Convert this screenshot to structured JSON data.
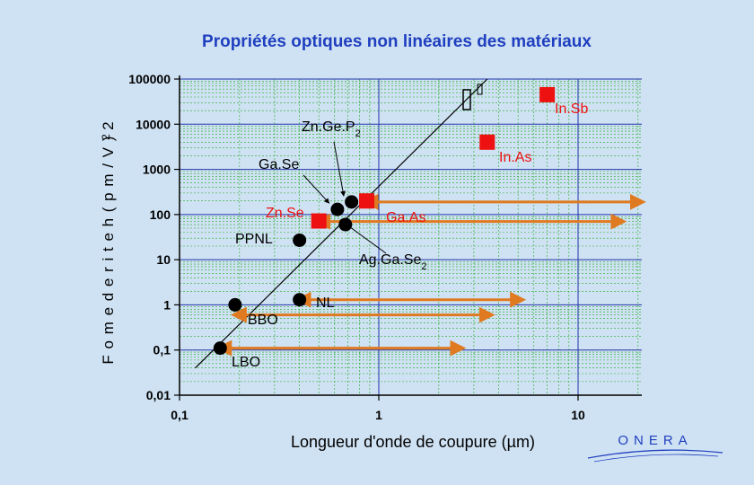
{
  "title": "Propriétés optiques non linéaires des matériaux",
  "logo_text": "ONERA",
  "colors": {
    "background": "#cfe2f3",
    "title": "#1f3fbf",
    "axis": "#000000",
    "major_grid": "#2233aa",
    "minor_grid": "#22aa22",
    "arrow": "#e07a20",
    "material_red": "#ee1111",
    "material_black": "#000000"
  },
  "chart_data": {
    "type": "scatter",
    "x_scale": "log",
    "y_scale": "log",
    "xlim": [
      0.1,
      20
    ],
    "ylim": [
      0.01,
      100000
    ],
    "xlabel": "Longueur d'onde de coupure (µm)",
    "ylabel": "F o m e d e r i t e h ( p m / V ) 2",
    "x_ticks": [
      "0,1",
      "1",
      "10"
    ],
    "x_tick_values": [
      0.1,
      1,
      10
    ],
    "y_ticks": [
      "100000",
      "10000",
      "1000",
      "100",
      "10",
      "1",
      "0,1",
      "0,01"
    ],
    "y_tick_values": [
      100000,
      10000,
      1000,
      100,
      10,
      1,
      0.1,
      0.01
    ],
    "grid": true,
    "materials": [
      {
        "name": "LBO",
        "x": 0.16,
        "y": 0.11,
        "marker": "circle",
        "color": "#000000"
      },
      {
        "name": "BBO",
        "x": 0.19,
        "y": 1.0,
        "marker": "circle",
        "color": "#000000"
      },
      {
        "name": "NL",
        "x": 0.4,
        "y": 1.3,
        "marker": "circle",
        "color": "#000000"
      },
      {
        "name": "PPNL",
        "x": 0.4,
        "y": 27,
        "marker": "circle",
        "color": "#000000"
      },
      {
        "name": "Zn.Se",
        "x": 0.5,
        "y": 72,
        "marker": "square",
        "color": "#ee1111"
      },
      {
        "name": "Ga.Se",
        "x": 0.62,
        "y": 130,
        "marker": "circle",
        "color": "#000000"
      },
      {
        "name": "Ag.Ga.Se2",
        "x": 0.68,
        "y": 60,
        "marker": "circle",
        "color": "#000000"
      },
      {
        "name": "Zn.Ge.P2",
        "x": 0.73,
        "y": 190,
        "marker": "circle",
        "color": "#000000"
      },
      {
        "name": "Ga.As",
        "x": 0.87,
        "y": 200,
        "marker": "square",
        "color": "#ee1111"
      },
      {
        "name": "In.As",
        "x": 3.5,
        "y": 4000,
        "marker": "square",
        "color": "#ee1111"
      },
      {
        "name": "In.Sb",
        "x": 7.0,
        "y": 45000,
        "marker": "square",
        "color": "#ee1111"
      }
    ],
    "transparency_arrows": [
      {
        "from": 0.87,
        "to": 20,
        "y": 190
      },
      {
        "from": 0.5,
        "to": 16,
        "y": 70
      },
      {
        "from": 0.4,
        "to": 5,
        "y": 1.3
      },
      {
        "from": 0.19,
        "to": 3.5,
        "y": 0.6
      },
      {
        "from": 0.16,
        "to": 2.5,
        "y": 0.11
      }
    ],
    "trend_line": [
      {
        "x": 0.12,
        "y": 0.04
      },
      {
        "x": 3.5,
        "y": 100000
      }
    ],
    "annotations": [
      {
        "text": "Zn.Ge.P",
        "sub": "2",
        "target": "Zn.Ge.P2"
      },
      {
        "text": "Ga.Se",
        "sub": "",
        "target": "Ga.Se"
      },
      {
        "text": "Zn.Se",
        "sub": "",
        "target": ""
      },
      {
        "text": "Ga.As",
        "sub": "",
        "target": ""
      },
      {
        "text": "PPNL",
        "sub": "",
        "target": ""
      },
      {
        "text": "Ag.Ga.Se",
        "sub": "2",
        "target": "Ag.Ga.Se2"
      },
      {
        "text": "NL",
        "sub": "",
        "target": ""
      },
      {
        "text": "BBO",
        "sub": "",
        "target": ""
      },
      {
        "text": "LBO",
        "sub": "",
        "target": ""
      },
      {
        "text": "In.As",
        "sub": "",
        "target": ""
      },
      {
        "text": "In.Sb",
        "sub": "",
        "target": ""
      }
    ]
  }
}
